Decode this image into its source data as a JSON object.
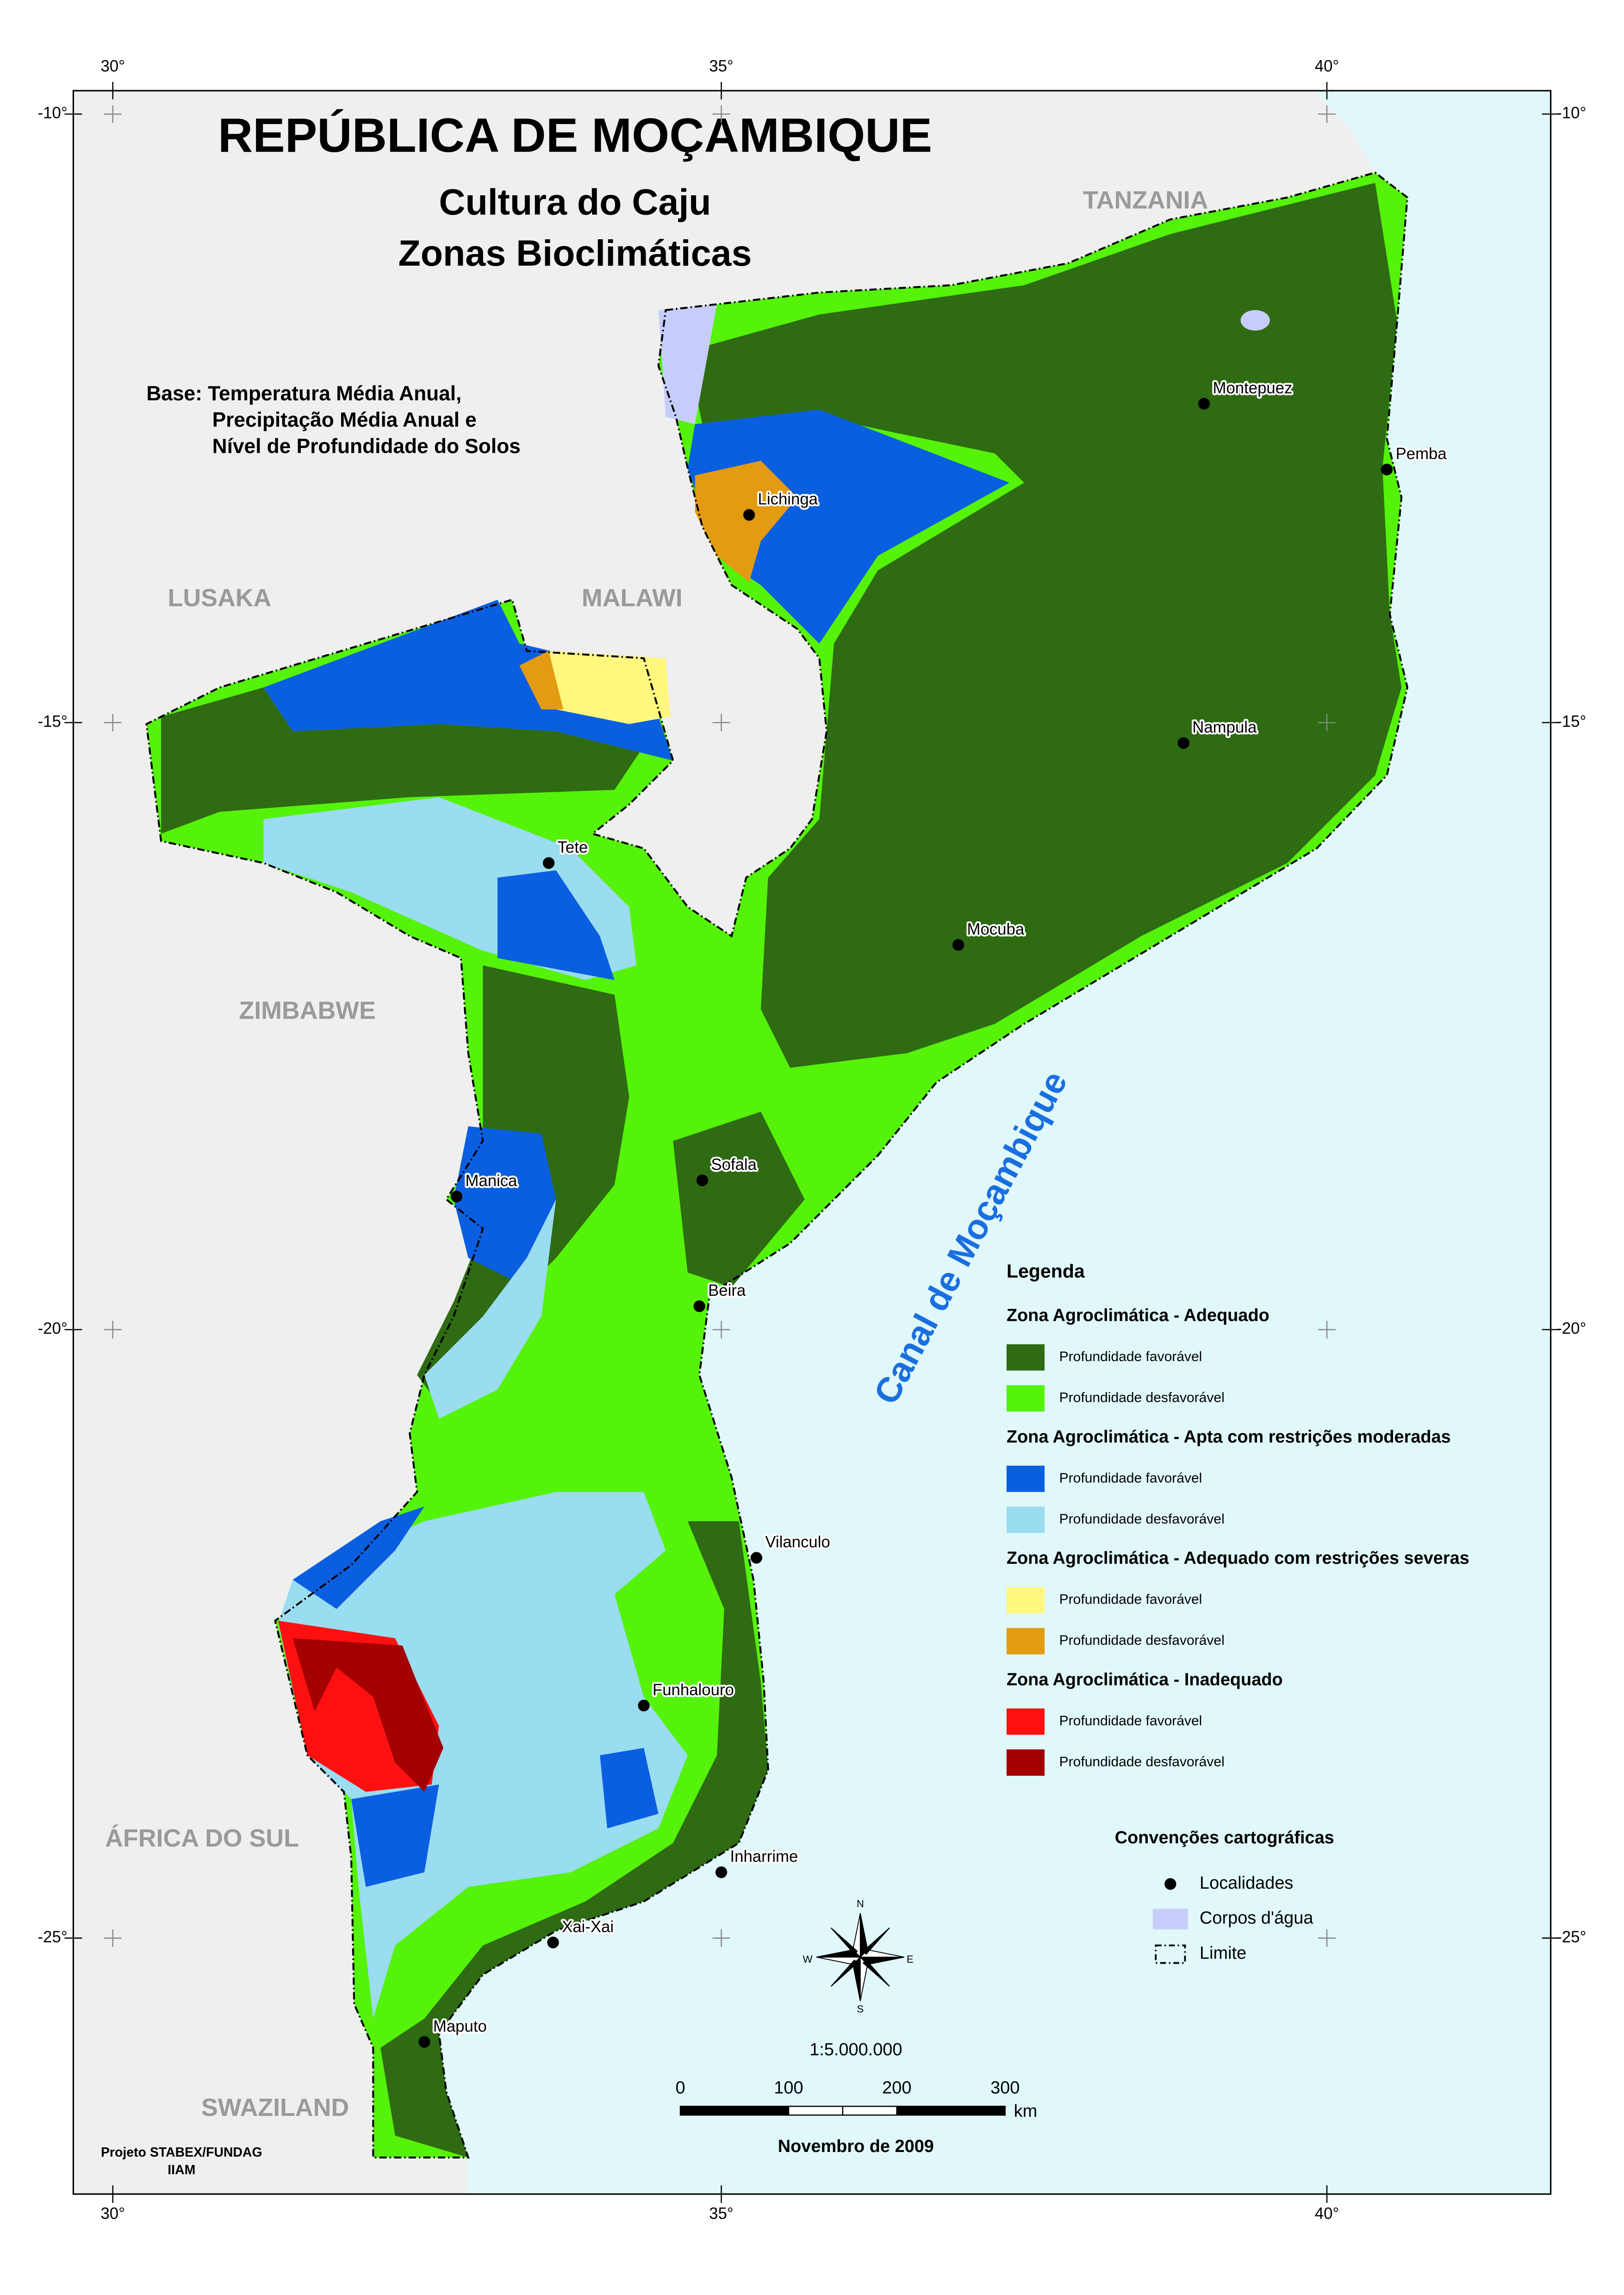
{
  "title": "REPÚBLICA DE MOÇAMBIQUE",
  "subtitle": [
    "Cultura do Caju",
    "Zonas Bioclimáticas"
  ],
  "base": [
    "Base: Temperatura Média Anual,",
    "Precipitação Média Anual e",
    "Nível de Profundidade do Solos"
  ],
  "graticule": {
    "longitudes": [
      "30°",
      "35°",
      "40°"
    ],
    "latitudes": [
      "-10°",
      "-15°",
      "-20°",
      "-25°"
    ]
  },
  "countries": [
    "TANZANIA",
    "MALAWI",
    "LUSAKA",
    "ZIMBABWE",
    "ÁFRICA DO SUL",
    "SWAZILAND"
  ],
  "sea_label": "Canal de Moçambique",
  "places": [
    "Montepuez",
    "Pemba",
    "Lichinga",
    "Nampula",
    "Tete",
    "Mocuba",
    "Manica",
    "Sofala",
    "Beira",
    "Vilanculo",
    "Funhalouro",
    "Inharrime",
    "Xai-Xai",
    "Maputo"
  ],
  "legend": {
    "title": "Legenda",
    "groups": [
      {
        "name": "Zona Agroclimática - Adequado",
        "items": [
          {
            "label": "Profundidade favorável",
            "color": "#2e6b12"
          },
          {
            "label": "Profundidade desfavorável",
            "color": "#55f20a"
          }
        ]
      },
      {
        "name": "Zona Agroclimática - Apta com restrições moderadas",
        "items": [
          {
            "label": "Profundidade favorável",
            "color": "#0a5fe0"
          },
          {
            "label": "Profundidade desfavorável",
            "color": "#9adcf0"
          }
        ]
      },
      {
        "name": "Zona Agroclimática - Adequado com restrições severas",
        "items": [
          {
            "label": "Profundidade favorável",
            "color": "#fff77e"
          },
          {
            "label": "Profundidade desfavorável",
            "color": "#e39b12"
          }
        ]
      },
      {
        "name": "Zona Agroclimática - Inadequado",
        "items": [
          {
            "label": "Profundidade favorável",
            "color": "#ff1010"
          },
          {
            "label": "Profundidade desfavorável",
            "color": "#a40000"
          }
        ]
      }
    ]
  },
  "conventions": {
    "title": "Convenções cartográficas",
    "items": [
      "Localidades",
      "Corpos d'água",
      "Limite"
    ],
    "water_color": "#c6cdfa"
  },
  "compass": [
    "N",
    "E",
    "S",
    "W"
  ],
  "scale": {
    "ratio": "1:5.000.000",
    "ticks": [
      0,
      100,
      200,
      300
    ],
    "unit": "km"
  },
  "date": "Novembro de 2009",
  "credits": [
    "Projeto STABEX/FUNDAG",
    "IIAM"
  ]
}
